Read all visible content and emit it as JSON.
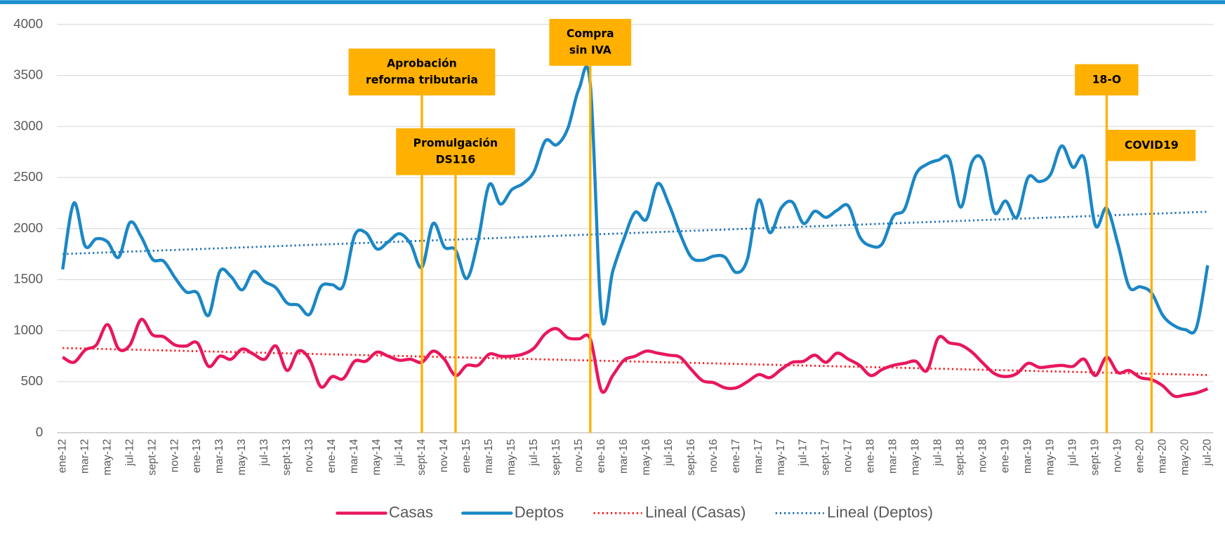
{
  "chart_data": {
    "type": "line",
    "categories": [
      "ene-12",
      null,
      "mar-12",
      null,
      "may-12",
      null,
      "jul-12",
      null,
      "sept-12",
      null,
      "nov-12",
      null,
      "ene-13",
      null,
      "mar-13",
      null,
      "may-13",
      null,
      "jul-13",
      null,
      "sept-13",
      null,
      "nov-13",
      null,
      "ene-14",
      null,
      "mar-14",
      null,
      "may-14",
      null,
      "jul-14",
      null,
      "sept-14",
      null,
      "nov-14",
      null,
      "ene-15",
      null,
      "mar-15",
      null,
      "may-15",
      null,
      "jul-15",
      null,
      "sept-15",
      null,
      "nov-15",
      null,
      "ene-16",
      null,
      "mar-16",
      null,
      "may-16",
      null,
      "jul-16",
      null,
      "sept-16",
      null,
      "nov-16",
      null,
      "ene-17",
      null,
      "mar-17",
      null,
      "may-17",
      null,
      "jul-17",
      null,
      "sept-17",
      null,
      "nov-17",
      null,
      "ene-18",
      null,
      "mar-18",
      null,
      "may-18",
      null,
      "jul-18",
      null,
      "sept-18",
      null,
      "nov-18",
      null,
      "ene-19",
      null,
      "mar-19",
      null,
      "may-19",
      null,
      "jul-19",
      null,
      "sept-19",
      null,
      "nov-19",
      null,
      "ene-20",
      null,
      "mar-20",
      null,
      "may-20",
      null,
      "jul-20"
    ],
    "series": [
      {
        "name": "Casas",
        "color": "#e8175d",
        "values": [
          740,
          690,
          810,
          860,
          1060,
          820,
          860,
          1110,
          960,
          940,
          860,
          850,
          880,
          650,
          750,
          720,
          820,
          770,
          720,
          850,
          610,
          800,
          720,
          450,
          550,
          530,
          700,
          700,
          790,
          750,
          710,
          720,
          690,
          800,
          720,
          560,
          660,
          660,
          770,
          750,
          750,
          770,
          830,
          970,
          1020,
          930,
          920,
          920,
          410,
          560,
          710,
          750,
          800,
          780,
          760,
          740,
          620,
          510,
          490,
          440,
          440,
          500,
          570,
          540,
          620,
          690,
          700,
          760,
          690,
          780,
          720,
          660,
          560,
          620,
          660,
          680,
          700,
          610,
          930,
          880,
          860,
          790,
          680,
          580,
          550,
          580,
          680,
          640,
          650,
          660,
          650,
          720,
          560,
          740,
          590,
          610,
          540,
          520,
          460,
          360,
          370,
          390,
          430
        ]
      },
      {
        "name": "Deptos",
        "color": "#1b87c5",
        "values": [
          1600,
          2250,
          1830,
          1900,
          1870,
          1720,
          2060,
          1920,
          1700,
          1680,
          1520,
          1380,
          1370,
          1150,
          1580,
          1530,
          1400,
          1580,
          1480,
          1420,
          1270,
          1250,
          1160,
          1430,
          1450,
          1440,
          1930,
          1960,
          1800,
          1870,
          1950,
          1850,
          1620,
          2050,
          1820,
          1790,
          1510,
          1880,
          2430,
          2240,
          2380,
          2440,
          2560,
          2860,
          2820,
          2980,
          3370,
          3420,
          1150,
          1580,
          1900,
          2160,
          2090,
          2440,
          2240,
          1950,
          1720,
          1690,
          1730,
          1720,
          1570,
          1700,
          2280,
          1960,
          2200,
          2260,
          2050,
          2170,
          2110,
          2180,
          2220,
          1920,
          1830,
          1850,
          2120,
          2190,
          2530,
          2630,
          2670,
          2680,
          2210,
          2650,
          2660,
          2160,
          2270,
          2110,
          2500,
          2460,
          2530,
          2810,
          2600,
          2690,
          2030,
          2200,
          1850,
          1430,
          1430,
          1370,
          1150,
          1050,
          1010,
          1030,
          1640
        ]
      }
    ],
    "trendlines": [
      {
        "name": "Lineal (Casas)",
        "color": "#ff1a1a",
        "start": 830,
        "end": 565
      },
      {
        "name": "Lineal (Deptos)",
        "color": "#1f6fb5",
        "start": 1750,
        "end": 2165
      }
    ],
    "annotations": [
      {
        "lines": [
          "Aprobación",
          "reforma tributaria"
        ],
        "x": 32
      },
      {
        "lines": [
          "Promulgación",
          "DS116"
        ],
        "x": 35
      },
      {
        "lines": [
          "Compra",
          "sin IVA"
        ],
        "x": 47
      },
      {
        "lines": [
          "18-O"
        ],
        "x": 93
      },
      {
        "lines": [
          "COVID19"
        ],
        "x": 97
      }
    ],
    "annotation_color": "#ffb000",
    "ylim": [
      0,
      4000
    ],
    "yticks": [
      0,
      500,
      1000,
      1500,
      2000,
      2500,
      3000,
      3500,
      4000
    ],
    "grid": true,
    "legend": "bottom"
  }
}
